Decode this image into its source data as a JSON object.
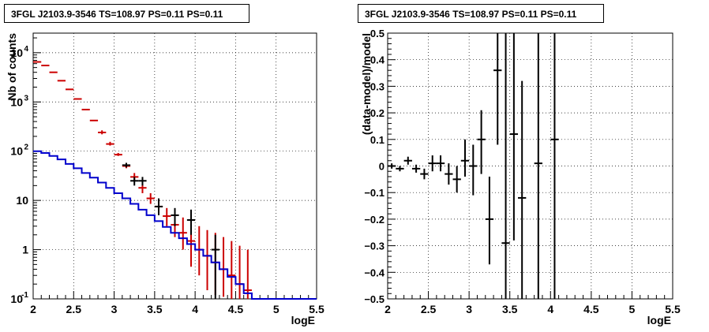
{
  "panels": [
    {
      "title": "3FGL J2103.9-3546 TS=108.97 PS=0.11 PS=0.11",
      "xlabel": "logE",
      "ylabel": "Nb of counts"
    },
    {
      "title": "3FGL J2103.9-3546 TS=108.97 PS=0.11 PS=0.11",
      "xlabel": "logE",
      "ylabel": "(data-model)/model"
    }
  ],
  "chart_data": [
    {
      "type": "scatter",
      "title": "3FGL J2103.9-3546 TS=108.97 PS=0.11 PS=0.11",
      "xlabel": "logE",
      "ylabel": "Nb of counts",
      "xlim": [
        2,
        5.5
      ],
      "ylim": [
        0.1,
        25000
      ],
      "yscale": "log",
      "grid": true,
      "x_ticks": [
        "2",
        "2.5",
        "3",
        "3.5",
        "4",
        "4.5",
        "5",
        "5.5"
      ],
      "y_ticks": [
        {
          "value": 0.1,
          "label": "10",
          "exp": "-1"
        },
        {
          "value": 1,
          "label": "1",
          "exp": ""
        },
        {
          "value": 10,
          "label": "10",
          "exp": ""
        },
        {
          "value": 100,
          "label": "10",
          "exp": "2"
        },
        {
          "value": 1000,
          "label": "10",
          "exp": "3"
        },
        {
          "value": 10000,
          "label": "10",
          "exp": "4"
        }
      ],
      "bin_width": 0.1,
      "series": [
        {
          "color": "#cc0000",
          "x": [
            2.05,
            2.15,
            2.25,
            2.35,
            2.45,
            2.55,
            2.65,
            2.75,
            2.85,
            2.95,
            3.05,
            3.15,
            3.25,
            3.35,
            3.45,
            3.55,
            3.65,
            3.75,
            3.85,
            3.95,
            4.05,
            4.15,
            4.25,
            4.35,
            4.45,
            4.55,
            4.65
          ],
          "y": [
            6500,
            5500,
            4000,
            2700,
            1800,
            1150,
            700,
            420,
            240,
            140,
            85,
            50,
            30,
            18,
            11,
            7.5,
            4.8,
            3.2,
            2.2,
            1.5,
            1.0,
            0.75,
            0.55,
            0.4,
            0.3,
            0.2,
            0.15
          ],
          "ylow": [
            null,
            null,
            null,
            null,
            null,
            null,
            null,
            null,
            220,
            130,
            80,
            45,
            25,
            14,
            8.5,
            5.5,
            3.0,
            1.8,
            1.0,
            0.45,
            0.3,
            0.15,
            0.12,
            0.11,
            0.1,
            0.1,
            0.1
          ],
          "yhigh": [
            null,
            null,
            null,
            null,
            null,
            null,
            null,
            null,
            265,
            155,
            92,
            56,
            36,
            22,
            14,
            10,
            7,
            5.5,
            4.5,
            4.0,
            3.0,
            2.5,
            2.2,
            1.8,
            1.5,
            1.2,
            1.0
          ]
        },
        {
          "color": "#000000",
          "x": [
            3.15,
            3.25,
            3.35,
            3.55,
            3.75,
            3.95,
            4.25
          ],
          "y": [
            52,
            25,
            25,
            7.5,
            5,
            4,
            1
          ],
          "ylow": [
            47,
            20,
            20,
            5,
            3,
            2,
            0.1
          ],
          "yhigh": [
            58,
            30,
            30,
            11,
            7,
            6.5,
            2
          ]
        },
        {
          "color": "#0000cc",
          "type": "step",
          "x": [
            2.05,
            2.15,
            2.25,
            2.35,
            2.45,
            2.55,
            2.65,
            2.75,
            2.85,
            2.95,
            3.05,
            3.15,
            3.25,
            3.35,
            3.45,
            3.55,
            3.65,
            3.75,
            3.85,
            3.95,
            4.05,
            4.15,
            4.25,
            4.35,
            4.45,
            4.55,
            4.65,
            4.75,
            4.85,
            4.95,
            5.05,
            5.15,
            5.25,
            5.35,
            5.45
          ],
          "y": [
            100,
            92,
            80,
            68,
            55,
            45,
            36,
            29,
            23,
            18,
            14,
            11,
            8.5,
            6.5,
            5,
            3.8,
            2.9,
            2.2,
            1.7,
            1.3,
            1.0,
            0.75,
            0.55,
            0.4,
            0.28,
            0.2,
            0.13,
            0.1,
            0.1,
            0.1,
            0.1,
            0.1,
            0.1,
            0.1,
            0.1
          ]
        }
      ]
    },
    {
      "type": "scatter",
      "title": "3FGL J2103.9-3546 TS=108.97 PS=0.11 PS=0.11",
      "xlabel": "logE",
      "ylabel": "(data-model)/model",
      "xlim": [
        2,
        5.5
      ],
      "ylim": [
        -0.5,
        0.5
      ],
      "grid": true,
      "x_ticks": [
        "2",
        "2.5",
        "3",
        "3.5",
        "4",
        "4.5",
        "5",
        "5.5"
      ],
      "y_ticks": [
        "-0.5",
        "-0.4",
        "-0.3",
        "-0.2",
        "-0.1",
        "0",
        "0.1",
        "0.2",
        "0.3",
        "0.4",
        "0.5"
      ],
      "bin_width": 0.1,
      "series": [
        {
          "color": "#000000",
          "x": [
            2.05,
            2.15,
            2.25,
            2.35,
            2.45,
            2.55,
            2.65,
            2.75,
            2.85,
            2.95,
            3.05,
            3.15,
            3.25,
            3.35,
            3.45,
            3.55,
            3.65,
            3.85,
            4.05
          ],
          "y": [
            0.0,
            -0.01,
            0.02,
            -0.01,
            -0.03,
            0.01,
            0.01,
            -0.03,
            -0.05,
            0.02,
            0.0,
            0.1,
            -0.2,
            0.36,
            -0.29,
            0.12,
            -0.12,
            0.01,
            0.1
          ],
          "ylow": [
            -0.01,
            -0.02,
            0.005,
            -0.025,
            -0.05,
            -0.02,
            -0.02,
            -0.07,
            -0.1,
            -0.04,
            -0.11,
            -0.03,
            -0.37,
            0.08,
            -0.6,
            -0.28,
            -0.6,
            -0.6,
            -0.6
          ],
          "yhigh": [
            0.01,
            0.0,
            0.035,
            0.005,
            -0.01,
            0.04,
            0.04,
            0.01,
            0.0,
            0.1,
            0.08,
            0.21,
            -0.04,
            0.6,
            0.6,
            0.6,
            0.32,
            0.6,
            0.6
          ]
        }
      ]
    }
  ]
}
